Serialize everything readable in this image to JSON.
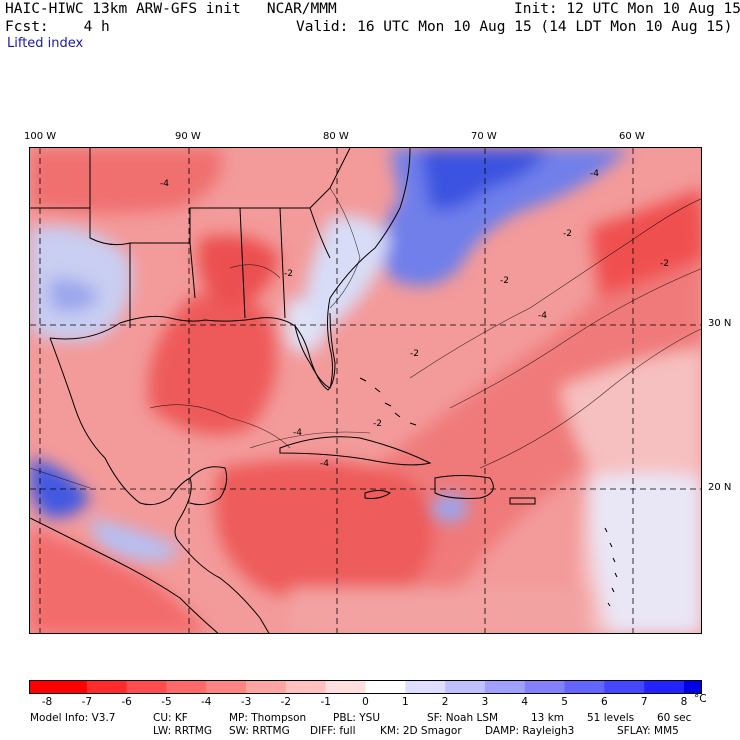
{
  "header": {
    "model_title": "HAIC-HIWC 13km ARW-GFS init   NCAR/MMM",
    "init": "Init: 12 UTC Mon 10 Aug 15",
    "fcst": "Fcst:    4 h",
    "valid": "Valid: 16 UTC Mon 10 Aug 15 (14 LDT Mon 10 Aug 15)",
    "field": "Lifted index"
  },
  "map": {
    "lon_labels": [
      "100 W",
      "90 W",
      "80 W",
      "70 W",
      "60 W"
    ],
    "lat_labels": [
      "30 N",
      "20 N"
    ],
    "contour_labels": [
      "-4",
      "-2",
      "-2",
      "-2",
      "-4",
      "-2",
      "-4",
      "-4",
      "-2",
      "-4",
      "-2"
    ],
    "colors": {
      "strong_negative": "#ee2a2a",
      "negative": "#f28080",
      "weak_negative": "#f8c6c6",
      "neutral": "#ffffff",
      "weak_positive": "#c9cef7",
      "positive": "#7a86ee",
      "strong_positive": "#1e3adc"
    }
  },
  "colorbar": {
    "ticks": [
      "-8",
      "-7",
      "-6",
      "-5",
      "-4",
      "-3",
      "-2",
      "-1",
      "0",
      "1",
      "2",
      "3",
      "4",
      "5",
      "6",
      "7",
      "8"
    ],
    "unit": "°C",
    "colors": [
      "#ff0000",
      "#ff2b2b",
      "#ff4d4d",
      "#ff6969",
      "#ff8585",
      "#ffa3a3",
      "#ffc0c0",
      "#ffdede",
      "#ffffff",
      "#dedeff",
      "#c0c0ff",
      "#a0a0ff",
      "#8282ff",
      "#6464ff",
      "#4646ff",
      "#2323ff",
      "#0000e6"
    ]
  },
  "footer": {
    "line1": [
      "Model Info: V3.7",
      "CU: KF",
      "MP: Thompson",
      "PBL: YSU",
      "SF: Noah LSM",
      "13 km",
      "51 levels",
      "60 sec"
    ],
    "line2": [
      "LW: RRTMG",
      "SW: RRTMG",
      "DIFF: full",
      "KM: 2D Smagor",
      "DAMP: Rayleigh3",
      "SFLAY: MM5"
    ]
  }
}
